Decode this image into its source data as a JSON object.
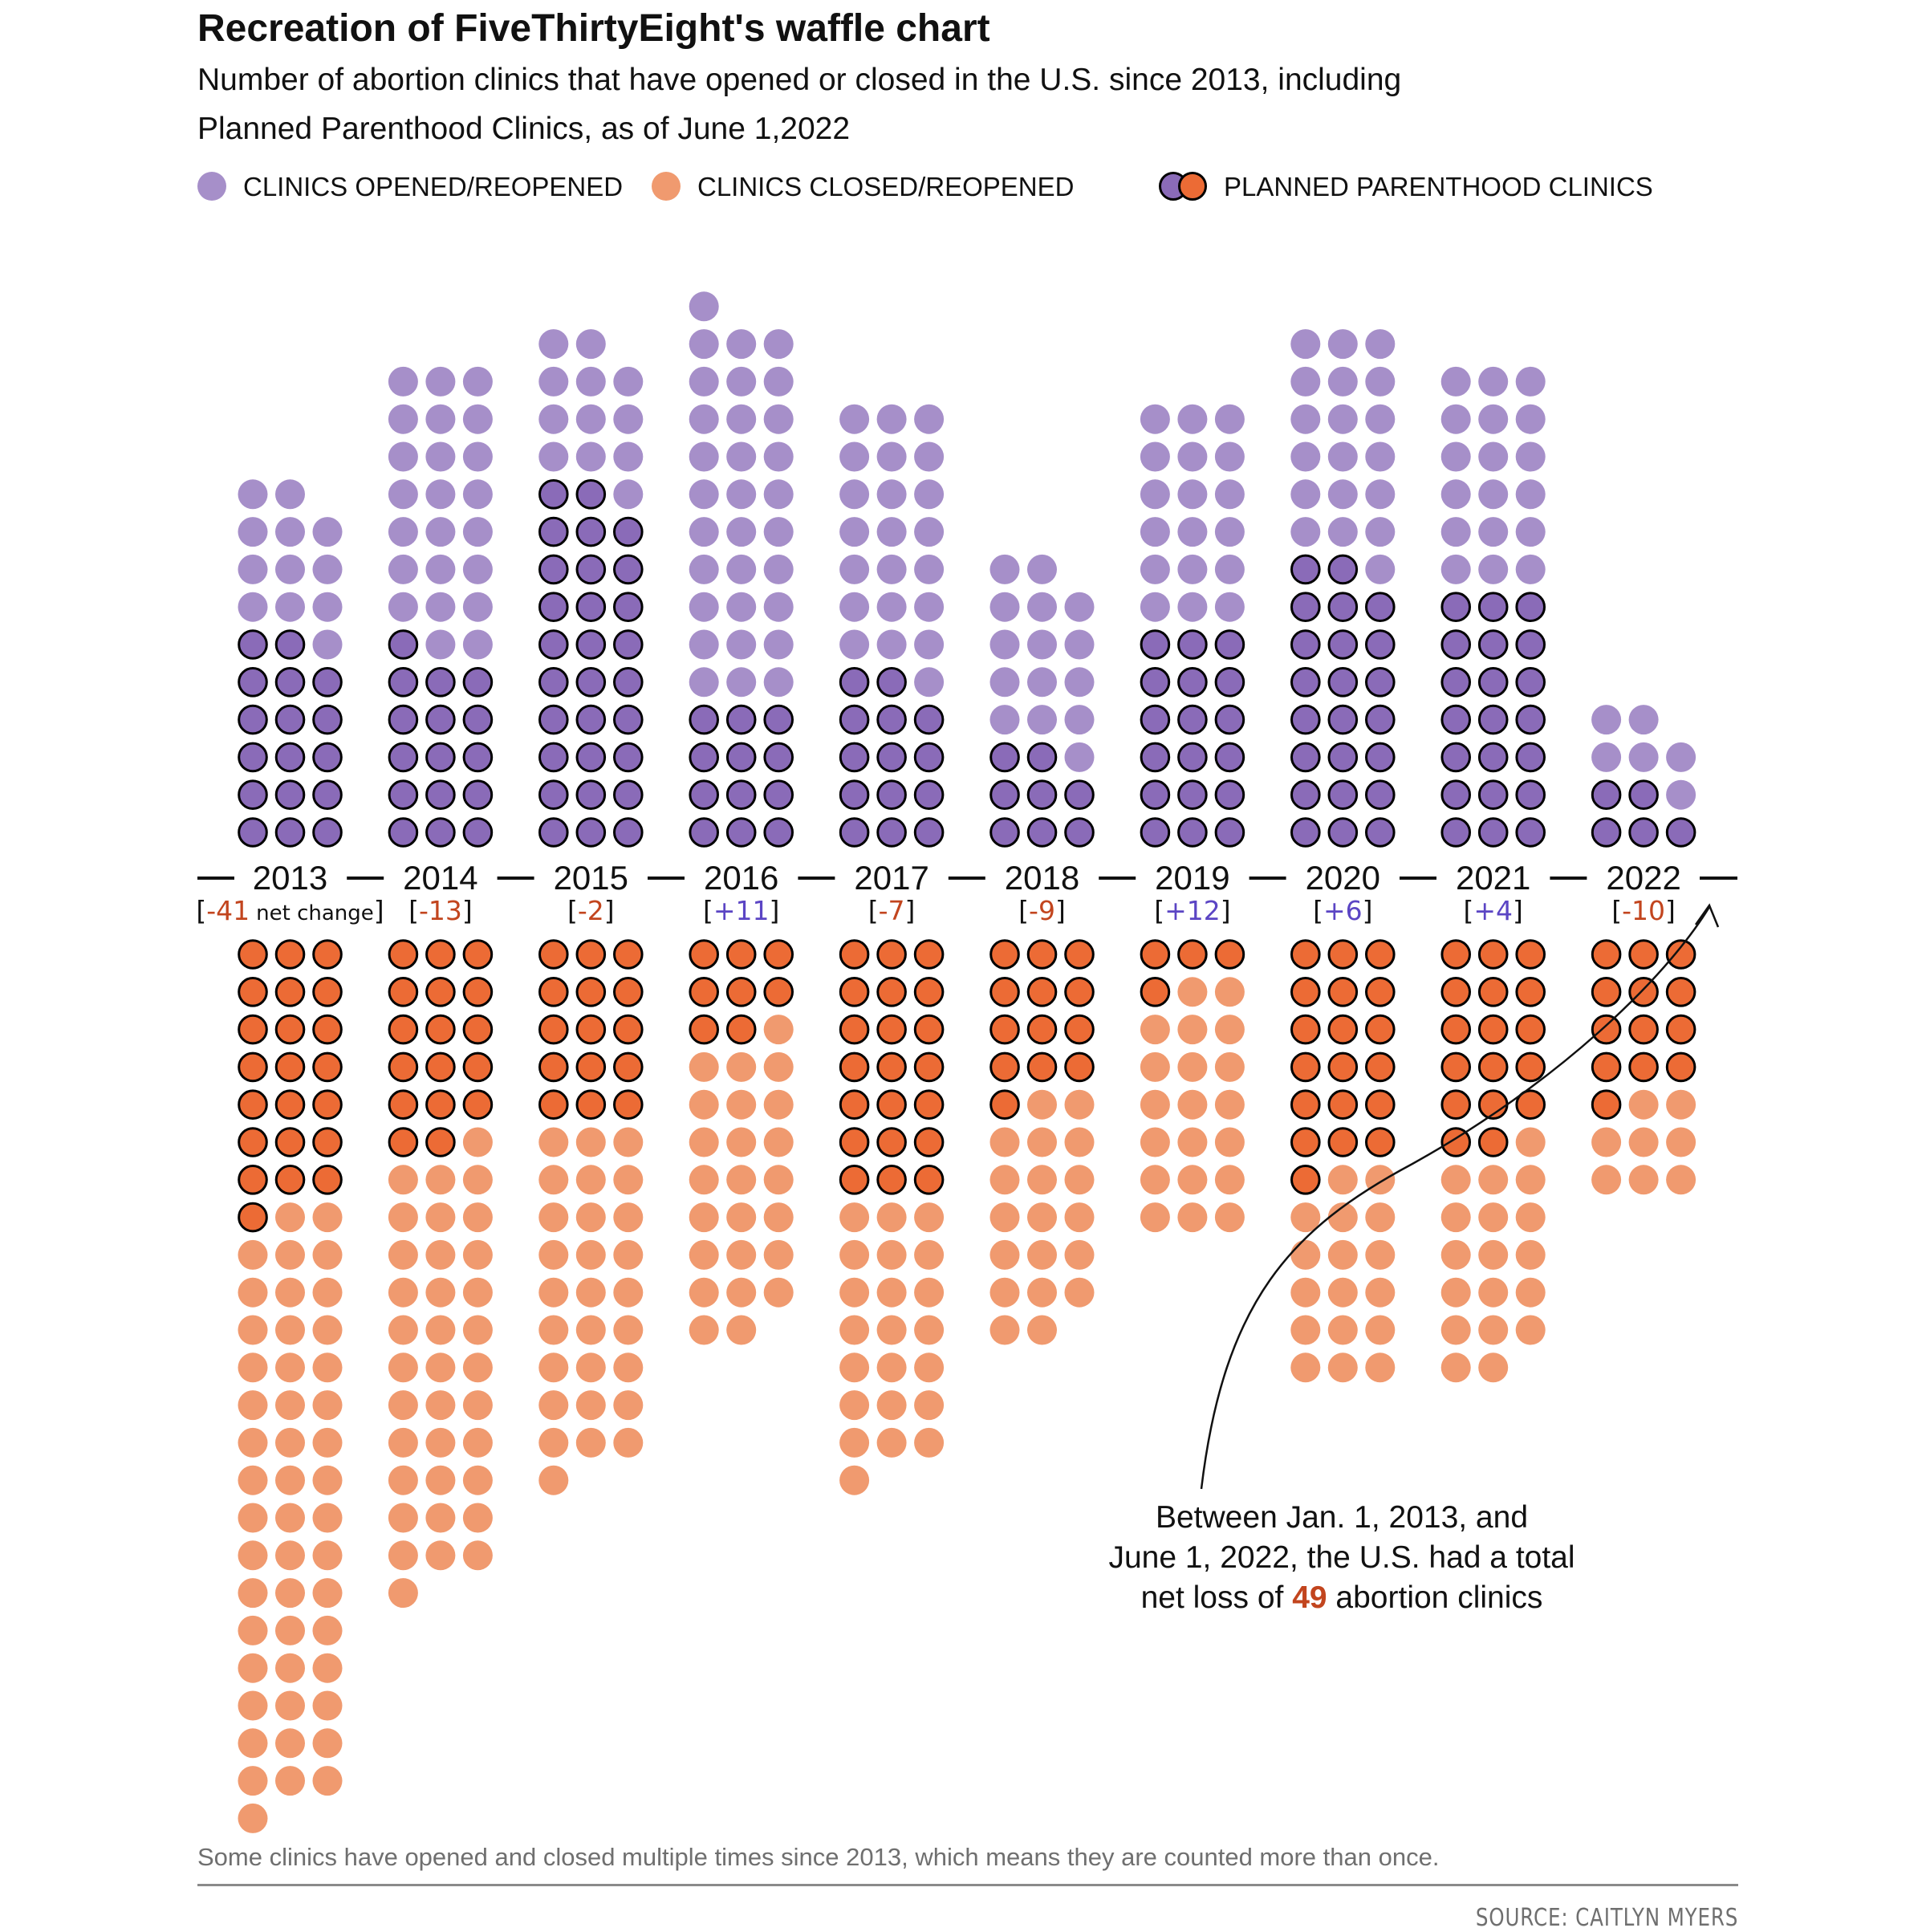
{
  "title": "Recreation of FiveThirtyEight's waffle chart",
  "subtitle_line1": "Number of abortion clinics that have opened or closed in the U.S. since 2013, including",
  "subtitle_line2": "Planned Parenthood Clinics, as of June 1,2022",
  "legend": [
    {
      "label": "CLINICS OPENED/REOPENED",
      "icon": "purple-dot-icon",
      "color": "#a68fc9"
    },
    {
      "label": "CLINICS CLOSED/REOPENED",
      "icon": "orange-dot-icon",
      "color": "#f09a6f"
    },
    {
      "label": "PLANNED PARENTHOOD CLINICS",
      "icon": "outlined-dot-pair-icon",
      "colors": [
        "#8a6bb8",
        "#ec6b35"
      ]
    }
  ],
  "colors": {
    "opened": "#a68fc9",
    "opened_pp": "#8a6bb8",
    "closed": "#f09a6f",
    "closed_pp": "#ec6b35",
    "negative_text": "#c2451e",
    "positive_text": "#5b45c4"
  },
  "chart_data": {
    "type": "waffle",
    "categories": [
      "2013",
      "2014",
      "2015",
      "2016",
      "2017",
      "2018",
      "2019",
      "2020",
      "2021",
      "2022"
    ],
    "series": [
      {
        "name": "CLINICS OPENED/REOPENED",
        "values": [
          29,
          39,
          41,
          43,
          36,
          23,
          36,
          42,
          39,
          11
        ]
      },
      {
        "name": "CLINICS CLOSED/REOPENED",
        "values": [
          70,
          52,
          43,
          32,
          43,
          32,
          24,
          36,
          35,
          21
        ]
      },
      {
        "name": "PLANNED PARENTHOOD CLINICS (opened)",
        "values": [
          17,
          16,
          29,
          12,
          14,
          8,
          18,
          23,
          21,
          5
        ]
      },
      {
        "name": "PLANNED PARENTHOOD CLINICS (closed)",
        "values": [
          22,
          17,
          15,
          8,
          21,
          13,
          4,
          19,
          17,
          13
        ]
      }
    ],
    "net_change": [
      -41,
      -13,
      -2,
      11,
      -7,
      -9,
      12,
      6,
      4,
      -10
    ],
    "net_change_labels": [
      "-41",
      "-13",
      "-2",
      "+11",
      "-7",
      "-9",
      "+12",
      "+6",
      "+4",
      "-10"
    ],
    "net_change_caption": "net change",
    "columns_per_year": 3
  },
  "annotation": {
    "line1": "Between  Jan. 1, 2013, and",
    "line2": "June 1, 2022, the U.S. had a total",
    "line3_before": "net loss of ",
    "line3_number": "49",
    "line3_after": " abortion clinics"
  },
  "footnote": "Some clinics have opened and closed multiple times since 2013, which means they are counted more than once.",
  "source": "SOURCE: CAITLYN MYERS"
}
